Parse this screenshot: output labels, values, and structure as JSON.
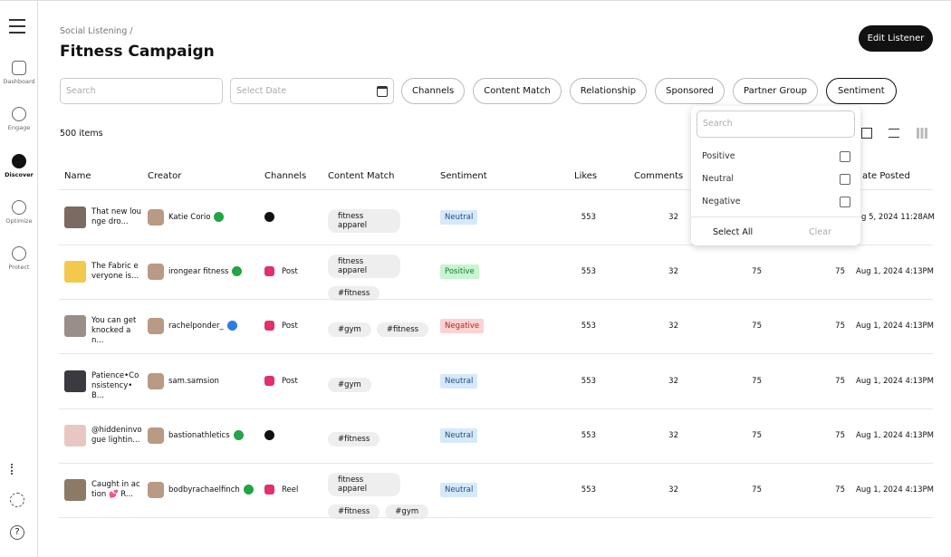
{
  "sidebar": {
    "items": [
      "Dashboard",
      "Engage",
      "Discover",
      "Optimize",
      "Protect"
    ]
  },
  "header": {
    "breadcrumb": "Social Listening /",
    "title": "Fitness Campaign",
    "button": "Edit Listener"
  },
  "filters": {
    "search": "Search",
    "date": "Select Date",
    "chips": [
      "Channels",
      "Content Match",
      "Relationship",
      "Sponsored",
      "Partner Group",
      "Sentiment"
    ]
  },
  "count": "500 items",
  "table": {
    "columns": [
      "Name",
      "Creator",
      "Channels",
      "Content Match",
      "Sentiment",
      "Likes",
      "Comments",
      "ate Posted"
    ],
    "rows": [
      {
        "name": "That new lounge dro...",
        "creator": "Katie Corio",
        "badge": "green",
        "channel": "tiktok",
        "tags": [
          "fitness apparel"
        ],
        "sentiment": "Neutral",
        "values": [
          553,
          32
        ],
        "date": "g 5, 2024 11:28AM",
        "thumb": "#7a6a60"
      },
      {
        "name": "The Fabric everyone is...",
        "creator": "irongear fitness",
        "badge": "green",
        "channel": "instagram",
        "channel_label": "Post",
        "tags": [
          "fitness apparel",
          "#fitness"
        ],
        "sentiment": "Positive",
        "values": [
          553,
          32,
          75,
          75
        ],
        "date": "Aug 1, 2024 4:13PM",
        "thumb": "#f2c94c"
      },
      {
        "name": "You can get knocked an...",
        "creator": "rachelponder_",
        "badge": "blue",
        "channel": "instagram",
        "channel_label": "Post",
        "tags": [
          "#gym",
          "#fitness"
        ],
        "sentiment": "Negative",
        "values": [
          553,
          32,
          75,
          75
        ],
        "date": "Aug 1, 2024 4:13PM",
        "thumb": "#9a8f88"
      },
      {
        "name": "Patience•Consistency•B...",
        "creator": "sam.samsion",
        "channel": "instagram",
        "channel_label": "Post",
        "tags": [
          "#gym"
        ],
        "sentiment": "Neutral",
        "values": [
          553,
          32,
          75,
          75
        ],
        "date": "Aug 1, 2024 4:13PM",
        "thumb": "#3a3a40"
      },
      {
        "name": "@hiddeninvogue lightin...",
        "creator": "bastionathletics",
        "badge": "green",
        "channel": "tiktok",
        "tags": [
          "#fitness"
        ],
        "sentiment": "Neutral",
        "values": [
          553,
          32,
          75,
          75
        ],
        "date": "Aug 1, 2024 4:13PM",
        "thumb": "#e8c7c2"
      },
      {
        "name": "Caught in action 💕 R...",
        "creator": "bodbyrachaelfinch",
        "badge": "green",
        "channel": "instagram",
        "channel_label": "Reel",
        "tags": [
          "fitness apparel",
          "#fitness",
          "#gym"
        ],
        "sentiment": "Neutral",
        "values": [
          553,
          32,
          75,
          75
        ],
        "date": "Aug 1, 2024 4:13PM",
        "thumb": "#8c7a66"
      }
    ]
  },
  "dropdown": {
    "search": "Search",
    "options": [
      "Positive",
      "Neutral",
      "Negative"
    ],
    "select_all": "Select All",
    "clear": "Clear"
  }
}
